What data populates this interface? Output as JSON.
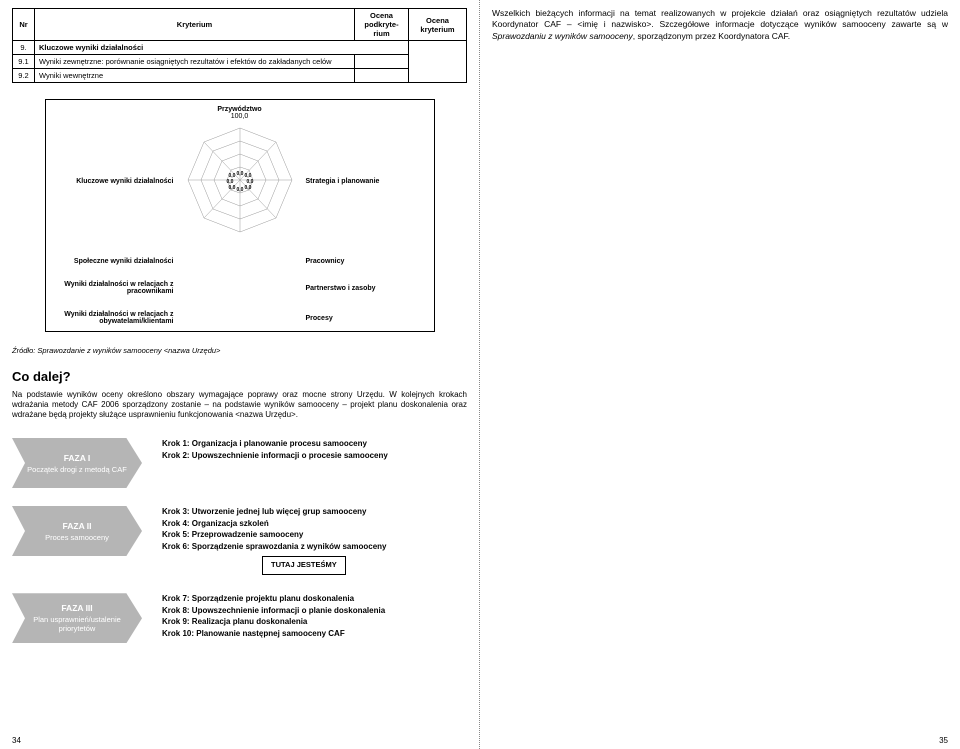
{
  "table": {
    "headers": {
      "nr": "Nr",
      "kryterium": "Kryterium",
      "podk": "Ocena podkryte-rium",
      "ok": "Ocena kryterium"
    },
    "rows": [
      {
        "nr": "9.",
        "text": "Kluczowe wyniki działalności",
        "bold": true
      },
      {
        "nr": "9.1",
        "text": "Wyniki zewnętrzne: porównanie osiągniętych rezultatów i efektów do zakładanych celów"
      },
      {
        "nr": "9.2",
        "text": "Wyniki wewnętrzne"
      }
    ]
  },
  "radar": {
    "top_label": "Przywództwo",
    "top_value": "100,0",
    "axes": {
      "tl": "Kluczowe wyniki działalności",
      "tr": "Strategia i planowanie",
      "ml": "Społeczne wyniki działalności",
      "mr": "Pracownicy",
      "bl": "Wyniki działalności w relacjach z pracownikami",
      "br": "Partnerstwo i zasoby",
      "bml": "Wyniki działalności w relacjach z obywatelami/klientami",
      "bmr": "Procesy"
    },
    "center_values": [
      "0,0",
      "0,0",
      "0,0",
      "0,0",
      "0,0",
      "0,0",
      "0,0",
      "0,0"
    ]
  },
  "source": "Źródło: Sprawozdanie z wyników samooceny <nazwa Urzędu>",
  "co_dalej": {
    "heading": "Co dalej?",
    "para": "Na podstawie wyników oceny określono obszary wymagające poprawy oraz mocne strony Urzędu. W kolejnych krokach wdrażania metody CAF 2006 sporządzony zostanie – na podstawie wyników samooceny – projekt planu doskonalenia oraz wdrażane będą projekty służące usprawnieniu funkcjonowania <nazwa Urzędu>."
  },
  "phases": [
    {
      "title": "FAZA I",
      "sub": "Początek drogi z metodą CAF",
      "steps": [
        "Krok 1: Organizacja i planowanie procesu samooceny",
        "Krok 2: Upowszechnienie informacji o procesie samooceny"
      ]
    },
    {
      "title": "FAZA II",
      "sub": "Proces samooceny",
      "steps": [
        "Krok 3: Utworzenie jednej lub więcej grup samooceny",
        "Krok 4: Organizacja szkoleń",
        "Krok 5: Przeprowadzenie samooceny",
        "Krok 6: Sporządzenie sprawozdania z wyników samooceny"
      ],
      "badge": "TUTAJ JESTEŚMY"
    },
    {
      "title": "FAZA III",
      "sub": "Plan usprawnień/ustalenie priorytetów",
      "steps": [
        "Krok 7: Sporządzenie projektu planu doskonalenia",
        "Krok 8: Upowszechnienie informacji o planie doskonalenia",
        "Krok 9: Realizacja planu doskonalenia",
        "Krok 10: Planowanie następnej samooceny CAF"
      ]
    }
  ],
  "right_para": {
    "pre": "Wszelkich bieżących informacji na temat realizowanych w projekcie działań oraz osiągniętych rezultatów udziela Koordynator CAF – <imię i nazwisko>. Szczegółowe informacje dotyczące wyników samooceny zawarte są w ",
    "it": "Sprawozdaniu z wyników samooceny",
    "post": ", sporządzonym przez Koordynatora CAF."
  },
  "page_left": "34",
  "page_right": "35"
}
